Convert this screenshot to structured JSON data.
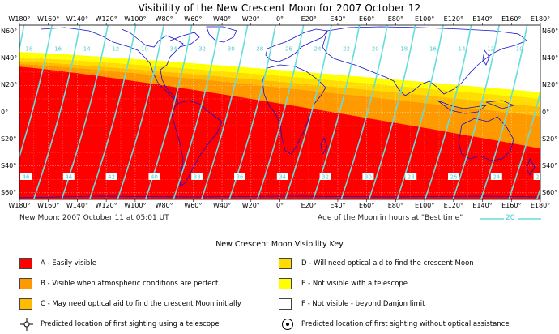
{
  "title": "Visibility of the New Crescent Moon for 2007 October 12",
  "lon_ticks": [
    "W180°",
    "W160°",
    "W140°",
    "W120°",
    "W100°",
    "W80°",
    "W60°",
    "W40°",
    "W20°",
    "0°",
    "E20°",
    "E40°",
    "E60°",
    "E80°",
    "E100°",
    "E120°",
    "E140°",
    "E160°",
    "E180°"
  ],
  "lat_ticks_left": [
    "N60°",
    "N40°",
    "N20°",
    "0°",
    "S20°",
    "S40°",
    "S60°"
  ],
  "lat_ticks_right": [
    "N60°",
    "N40°",
    "N20°",
    "0°",
    "S20°",
    "S40°",
    "S60°"
  ],
  "new_moon": "New Moon: 2007 October 11 at 05:01 UT",
  "age_legend_text": "Age of the Moon in hours at \"Best time\"",
  "age_legend_sample": "20",
  "contours": {
    "top_labels": [
      "18",
      "16",
      "14",
      "12",
      "10",
      "34",
      "32",
      "30",
      "28",
      "26",
      "24",
      "22",
      "20",
      "18",
      "16",
      "14",
      "12",
      "10",
      "34"
    ],
    "bottom_labels": [
      "46",
      "44",
      "42",
      "40",
      "38",
      "36",
      "34",
      "32",
      "30",
      "28",
      "26",
      "24",
      "22"
    ]
  },
  "key": {
    "title": "New Crescent Moon Visibility Key",
    "items": [
      {
        "label": "A - Easily visible",
        "color": "#ff0000"
      },
      {
        "label": "D - Will need optical aid to find the crescent Moon",
        "color": "#ffdd00"
      },
      {
        "label": "B - Visible when atmospheric conditions are perfect",
        "color": "#ff9900"
      },
      {
        "label": "E - Not visible with a telescope",
        "color": "#ffff00"
      },
      {
        "label": "C - May need optical aid to find the crescent Moon initially",
        "color": "#ffbb00"
      },
      {
        "label": "F - Not visible - beyond Danjon limit",
        "color": "#ffffff"
      }
    ],
    "telescope_label": "Predicted location of first sighting using a telescope",
    "naked_eye_label": "Predicted location of first sighting without optical assistance"
  },
  "colors": {
    "zone_a": "#ff0000",
    "zone_b": "#ff9900",
    "zone_c": "#ffbb00",
    "zone_d": "#ffdd00",
    "zone_e": "#ffff00",
    "contour": "#66dddd",
    "coast": "#1111cc"
  }
}
